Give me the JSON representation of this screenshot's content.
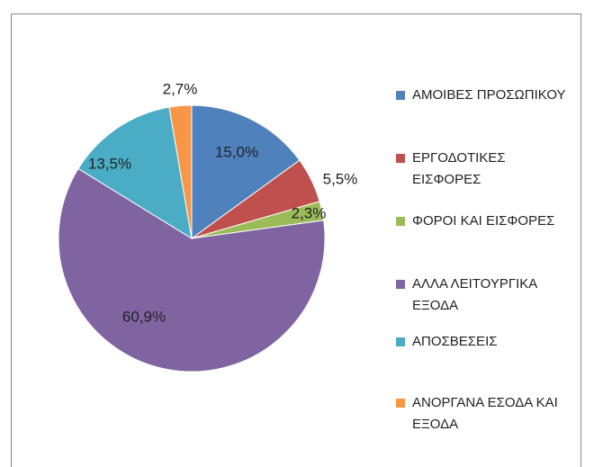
{
  "chart_data": {
    "type": "pie",
    "categories": [
      "ΑΜΟΙΒΕΣ ΠΡΟΣΩΠΙΚΟΥ",
      "ΕΡΓΟΔΟΤΙΚΕΣ ΕΙΣΦΟΡΕΣ",
      "ΦΟΡΟΙ ΚΑΙ ΕΙΣΦΟΡΕΣ",
      "ΑΛΛΑ ΛΕΙΤΟΥΡΓΙΚΑ ΕΞΟΔΑ",
      "ΑΠΟΣΒΕΣΕΙΣ",
      "ΑΝΟΡΓΑΝΑ ΕΣΟΔΑ ΚΑΙ ΕΞΟΔΑ"
    ],
    "values": [
      15.0,
      5.5,
      2.3,
      60.9,
      13.5,
      2.7
    ],
    "value_labels": [
      "15,0%",
      "5,5%",
      "2,3%",
      "60,9%",
      "13,5%",
      "2,7%"
    ],
    "colors": [
      "#4f81bd",
      "#c0504d",
      "#9bbb59",
      "#8064a2",
      "#4bacc6",
      "#f79646"
    ],
    "legend": "right"
  }
}
